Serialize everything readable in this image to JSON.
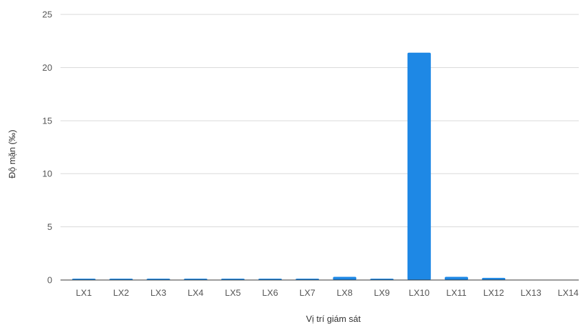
{
  "chart_data": {
    "type": "bar",
    "title": "",
    "xlabel": "Vị trí giám sát",
    "ylabel": "Độ mặn (‰)",
    "categories": [
      "LX1",
      "LX2",
      "LX3",
      "LX4",
      "LX5",
      "LX6",
      "LX7",
      "LX8",
      "LX9",
      "LX10",
      "LX11",
      "LX12",
      "LX13",
      "LX14"
    ],
    "values": [
      0.1,
      0.1,
      0.1,
      0.1,
      0.1,
      0.1,
      0.1,
      0.3,
      0.1,
      21.4,
      0.3,
      0.2,
      0,
      0
    ],
    "ylim": [
      0,
      25
    ],
    "yticks": [
      0,
      5,
      10,
      15,
      20,
      25
    ],
    "grid": true,
    "legend": "none",
    "bar_color": "#1e88e5"
  }
}
